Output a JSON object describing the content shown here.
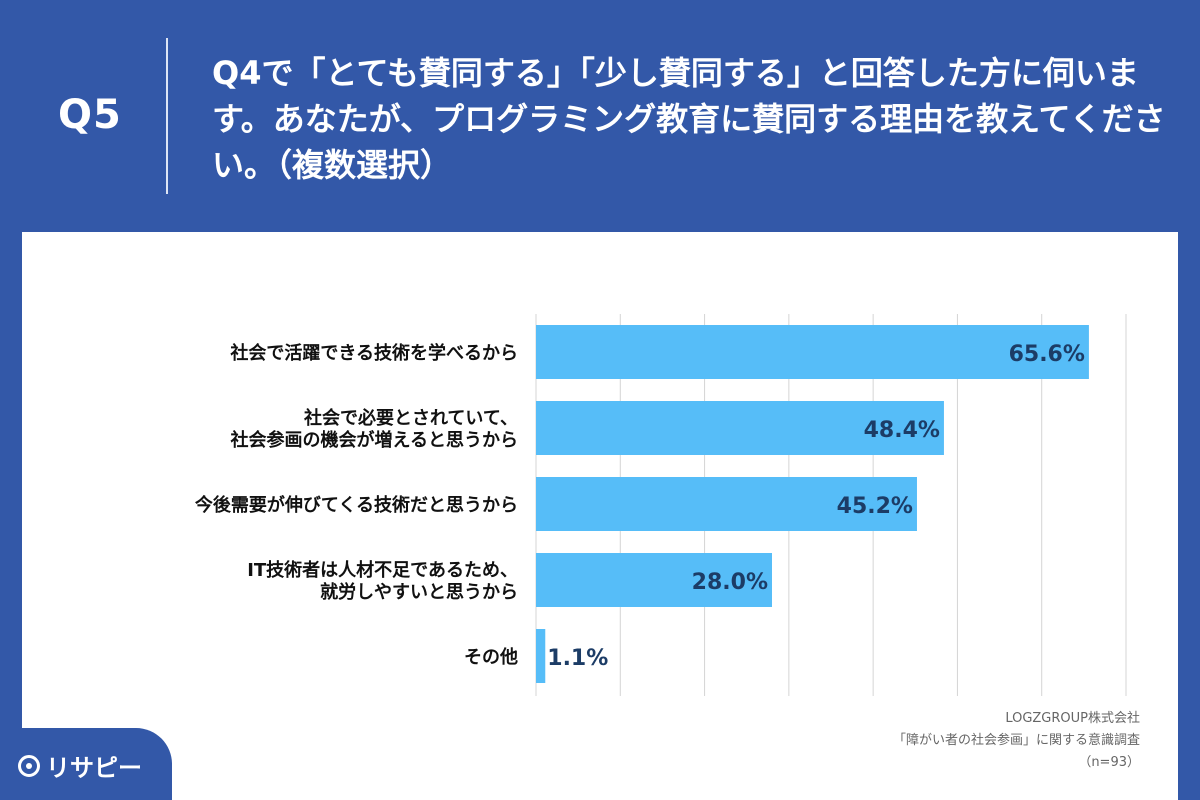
{
  "header": {
    "q_label": "Q5",
    "question": "Q4で「とても賛同する」「少し賛同する」と回答した方に伺います。あなたが、プログラミング教育に賛同する理由を教えてください。（複数選択）"
  },
  "chart_data": {
    "type": "bar",
    "orientation": "horizontal",
    "categories": [
      [
        "社会で活躍できる技術を学べるから"
      ],
      [
        "社会で必要とされていて、",
        "社会参画の機会が増えると思うから"
      ],
      [
        "今後需要が伸びてくる技術だと思うから"
      ],
      [
        "IT技術者は人材不足であるため、",
        "就労しやすいと思うから"
      ],
      [
        "その他"
      ]
    ],
    "values": [
      65.6,
      48.4,
      45.2,
      28.0,
      1.1
    ],
    "value_labels": [
      "65.6%",
      "48.4%",
      "45.2%",
      "28.0%",
      "1.1%"
    ],
    "xlim": [
      0,
      70
    ],
    "grid": true,
    "bar_color": "#56bdf8",
    "label_color": "#1c3c66"
  },
  "source": {
    "company": "LOGZGROUP株式会社",
    "survey": "「障がい者の社会参画」に関する意識調査",
    "n": "（n=93）"
  },
  "brand": {
    "logo_text": "リサピー"
  },
  "colors": {
    "background": "#3358a8",
    "panel": "#ffffff"
  }
}
